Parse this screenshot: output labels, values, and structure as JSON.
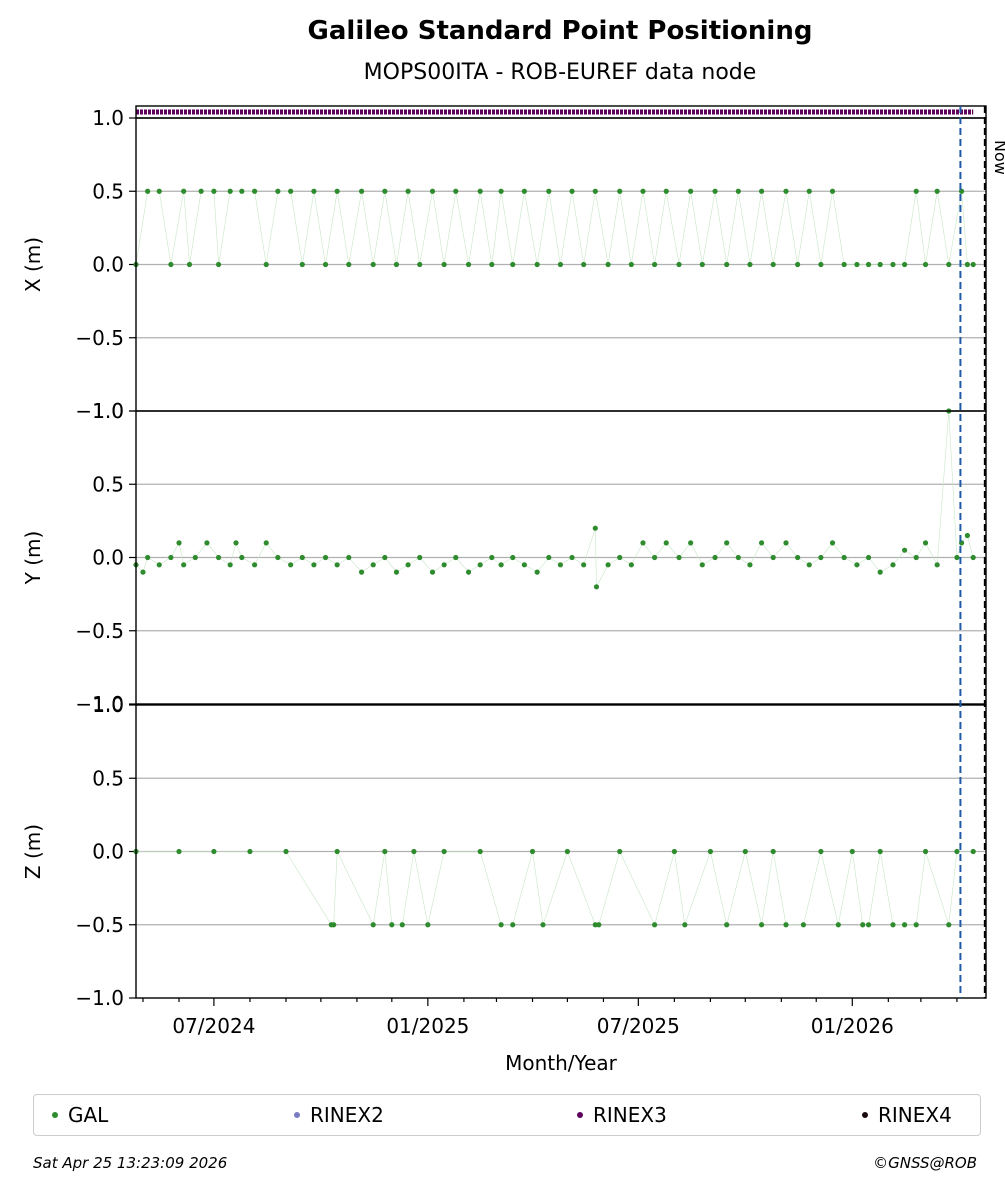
{
  "chart_data": {
    "type": "scatter",
    "title": "Galileo Standard Point Positioning",
    "subtitle": "MOPS00ITA - ROB-EUREF data node",
    "xlabel": "Month/Year",
    "x_ticks": [
      "07/2024",
      "01/2025",
      "07/2025",
      "01/2026"
    ],
    "x_range": [
      "2024-04-25",
      "2026-04-26"
    ],
    "now_label": "Now",
    "now_date": "2026-04-25",
    "blue_line_date": "2026-04-04",
    "panels": [
      {
        "ylabel": "X (m)",
        "ylim": [
          -1.0,
          1.0
        ],
        "y_ticks": [
          "−1.0",
          "−0.5",
          "0.0",
          "0.5",
          "1.0"
        ],
        "series": [
          {
            "name": "GAL",
            "color": "#2e8b2e",
            "points": [
              [
                "2024-04-25",
                0.0
              ],
              [
                "2024-05-05",
                0.5
              ],
              [
                "2024-05-15",
                0.5
              ],
              [
                "2024-05-25",
                0.0
              ],
              [
                "2024-06-05",
                0.5
              ],
              [
                "2024-06-10",
                0.0
              ],
              [
                "2024-06-20",
                0.5
              ],
              [
                "2024-07-01",
                0.5
              ],
              [
                "2024-07-05",
                0.0
              ],
              [
                "2024-07-15",
                0.5
              ],
              [
                "2024-07-25",
                0.5
              ],
              [
                "2024-08-05",
                0.5
              ],
              [
                "2024-08-15",
                0.0
              ],
              [
                "2024-08-25",
                0.5
              ],
              [
                "2024-09-05",
                0.5
              ],
              [
                "2024-09-15",
                0.0
              ],
              [
                "2024-09-25",
                0.5
              ],
              [
                "2024-10-05",
                0.0
              ],
              [
                "2024-10-15",
                0.5
              ],
              [
                "2024-10-25",
                0.0
              ],
              [
                "2024-11-05",
                0.5
              ],
              [
                "2024-11-15",
                0.0
              ],
              [
                "2024-11-25",
                0.5
              ],
              [
                "2024-12-05",
                0.0
              ],
              [
                "2024-12-15",
                0.5
              ],
              [
                "2024-12-25",
                0.0
              ],
              [
                "2025-01-05",
                0.5
              ],
              [
                "2025-01-15",
                0.0
              ],
              [
                "2025-01-25",
                0.5
              ],
              [
                "2025-02-05",
                0.0
              ],
              [
                "2025-02-15",
                0.5
              ],
              [
                "2025-02-25",
                0.0
              ],
              [
                "2025-03-05",
                0.5
              ],
              [
                "2025-03-15",
                0.0
              ],
              [
                "2025-03-25",
                0.5
              ],
              [
                "2025-04-05",
                0.0
              ],
              [
                "2025-04-15",
                0.5
              ],
              [
                "2025-04-25",
                0.0
              ],
              [
                "2025-05-05",
                0.5
              ],
              [
                "2025-05-15",
                0.0
              ],
              [
                "2025-05-25",
                0.5
              ],
              [
                "2025-06-05",
                0.0
              ],
              [
                "2025-06-15",
                0.5
              ],
              [
                "2025-06-25",
                0.0
              ],
              [
                "2025-07-05",
                0.5
              ],
              [
                "2025-07-15",
                0.0
              ],
              [
                "2025-07-25",
                0.5
              ],
              [
                "2025-08-05",
                0.0
              ],
              [
                "2025-08-15",
                0.5
              ],
              [
                "2025-08-25",
                0.0
              ],
              [
                "2025-09-05",
                0.5
              ],
              [
                "2025-09-15",
                0.0
              ],
              [
                "2025-09-25",
                0.5
              ],
              [
                "2025-10-05",
                0.0
              ],
              [
                "2025-10-15",
                0.5
              ],
              [
                "2025-10-25",
                0.0
              ],
              [
                "2025-11-05",
                0.5
              ],
              [
                "2025-11-15",
                0.0
              ],
              [
                "2025-11-25",
                0.5
              ],
              [
                "2025-12-05",
                0.0
              ],
              [
                "2025-12-15",
                0.5
              ],
              [
                "2025-12-25",
                0.0
              ],
              [
                "2026-01-05",
                0.0
              ],
              [
                "2026-01-15",
                0.0
              ],
              [
                "2026-01-25",
                0.0
              ],
              [
                "2026-02-05",
                0.0
              ],
              [
                "2026-02-15",
                0.0
              ],
              [
                "2026-02-25",
                0.5
              ],
              [
                "2026-03-05",
                0.0
              ],
              [
                "2026-03-15",
                0.5
              ],
              [
                "2026-03-25",
                0.0
              ],
              [
                "2026-04-05",
                0.5
              ],
              [
                "2026-04-10",
                0.0
              ],
              [
                "2026-04-15",
                0.0
              ]
            ]
          },
          {
            "name": "RINEX3",
            "color": "#5e005e",
            "y_constant": 1.05,
            "from": "2024-04-25",
            "to": "2026-04-15"
          }
        ]
      },
      {
        "ylabel": "Y (m)",
        "ylim": [
          -1.0,
          1.0
        ],
        "y_ticks": [
          "−1.0",
          "−0.5",
          "0.0",
          "0.5",
          "1.0"
        ],
        "series": [
          {
            "name": "GAL",
            "color": "#2e8b2e",
            "points": [
              [
                "2024-04-25",
                -0.05
              ],
              [
                "2024-05-01",
                -0.1
              ],
              [
                "2024-05-05",
                0.0
              ],
              [
                "2024-05-15",
                -0.05
              ],
              [
                "2024-05-25",
                0.0
              ],
              [
                "2024-06-01",
                0.1
              ],
              [
                "2024-06-05",
                -0.05
              ],
              [
                "2024-06-15",
                0.0
              ],
              [
                "2024-06-25",
                0.1
              ],
              [
                "2024-07-05",
                0.0
              ],
              [
                "2024-07-15",
                -0.05
              ],
              [
                "2024-07-20",
                0.1
              ],
              [
                "2024-07-25",
                0.0
              ],
              [
                "2024-08-05",
                -0.05
              ],
              [
                "2024-08-15",
                0.1
              ],
              [
                "2024-08-25",
                0.0
              ],
              [
                "2024-09-05",
                -0.05
              ],
              [
                "2024-09-15",
                0.0
              ],
              [
                "2024-09-25",
                -0.05
              ],
              [
                "2024-10-05",
                0.0
              ],
              [
                "2024-10-15",
                -0.05
              ],
              [
                "2024-10-25",
                0.0
              ],
              [
                "2024-11-05",
                -0.1
              ],
              [
                "2024-11-15",
                -0.05
              ],
              [
                "2024-11-25",
                0.0
              ],
              [
                "2024-12-05",
                -0.1
              ],
              [
                "2024-12-15",
                -0.05
              ],
              [
                "2024-12-25",
                0.0
              ],
              [
                "2025-01-05",
                -0.1
              ],
              [
                "2025-01-15",
                -0.05
              ],
              [
                "2025-01-25",
                0.0
              ],
              [
                "2025-02-05",
                -0.1
              ],
              [
                "2025-02-15",
                -0.05
              ],
              [
                "2025-02-25",
                0.0
              ],
              [
                "2025-03-05",
                -0.05
              ],
              [
                "2025-03-15",
                0.0
              ],
              [
                "2025-03-25",
                -0.05
              ],
              [
                "2025-04-05",
                -0.1
              ],
              [
                "2025-04-15",
                0.0
              ],
              [
                "2025-04-25",
                -0.05
              ],
              [
                "2025-05-05",
                0.0
              ],
              [
                "2025-05-15",
                -0.05
              ],
              [
                "2025-05-25",
                0.2
              ],
              [
                "2025-05-26",
                -0.2
              ],
              [
                "2025-06-05",
                -0.05
              ],
              [
                "2025-06-15",
                0.0
              ],
              [
                "2025-06-25",
                -0.05
              ],
              [
                "2025-07-05",
                0.1
              ],
              [
                "2025-07-15",
                0.0
              ],
              [
                "2025-07-25",
                0.1
              ],
              [
                "2025-08-05",
                0.0
              ],
              [
                "2025-08-15",
                0.1
              ],
              [
                "2025-08-25",
                -0.05
              ],
              [
                "2025-09-05",
                0.0
              ],
              [
                "2025-09-15",
                0.1
              ],
              [
                "2025-09-25",
                0.0
              ],
              [
                "2025-10-05",
                -0.05
              ],
              [
                "2025-10-15",
                0.1
              ],
              [
                "2025-10-25",
                0.0
              ],
              [
                "2025-11-05",
                0.1
              ],
              [
                "2025-11-15",
                0.0
              ],
              [
                "2025-11-25",
                -0.05
              ],
              [
                "2025-12-05",
                0.0
              ],
              [
                "2025-12-15",
                0.1
              ],
              [
                "2025-12-25",
                0.0
              ],
              [
                "2026-01-05",
                -0.05
              ],
              [
                "2026-01-15",
                0.0
              ],
              [
                "2026-01-25",
                -0.1
              ],
              [
                "2026-02-05",
                -0.05
              ],
              [
                "2026-02-15",
                0.05
              ],
              [
                "2026-02-25",
                0.0
              ],
              [
                "2026-03-05",
                0.1
              ],
              [
                "2026-03-15",
                -0.05
              ],
              [
                "2026-03-25",
                1.0
              ],
              [
                "2026-04-01",
                0.0
              ],
              [
                "2026-04-05",
                0.1
              ],
              [
                "2026-04-10",
                0.15
              ],
              [
                "2026-04-15",
                0.0
              ]
            ]
          }
        ]
      },
      {
        "ylabel": "Z (m)",
        "ylim": [
          -1.0,
          1.0
        ],
        "y_ticks": [
          "−1.0",
          "−0.5",
          "0.0",
          "0.5",
          "1.0"
        ],
        "series": [
          {
            "name": "GAL",
            "color": "#2e8b2e",
            "points": [
              [
                "2024-04-25",
                0.0
              ],
              [
                "2024-06-01",
                0.0
              ],
              [
                "2024-07-01",
                0.0
              ],
              [
                "2024-08-01",
                0.0
              ],
              [
                "2024-09-01",
                0.0
              ],
              [
                "2024-10-10",
                -0.5
              ],
              [
                "2024-10-12",
                -0.5
              ],
              [
                "2024-10-15",
                0.0
              ],
              [
                "2024-11-15",
                -0.5
              ],
              [
                "2024-11-25",
                0.0
              ],
              [
                "2024-12-01",
                -0.5
              ],
              [
                "2024-12-10",
                -0.5
              ],
              [
                "2024-12-20",
                0.0
              ],
              [
                "2025-01-01",
                -0.5
              ],
              [
                "2025-01-15",
                0.0
              ],
              [
                "2025-02-15",
                0.0
              ],
              [
                "2025-03-05",
                -0.5
              ],
              [
                "2025-03-15",
                -0.5
              ],
              [
                "2025-04-01",
                0.0
              ],
              [
                "2025-04-10",
                -0.5
              ],
              [
                "2025-05-01",
                0.0
              ],
              [
                "2025-05-25",
                -0.5
              ],
              [
                "2025-05-28",
                -0.5
              ],
              [
                "2025-06-15",
                0.0
              ],
              [
                "2025-07-15",
                -0.5
              ],
              [
                "2025-08-01",
                0.0
              ],
              [
                "2025-08-10",
                -0.5
              ],
              [
                "2025-09-01",
                0.0
              ],
              [
                "2025-09-15",
                -0.5
              ],
              [
                "2025-10-01",
                0.0
              ],
              [
                "2025-10-15",
                -0.5
              ],
              [
                "2025-10-25",
                0.0
              ],
              [
                "2025-11-05",
                -0.5
              ],
              [
                "2025-11-20",
                -0.5
              ],
              [
                "2025-12-05",
                0.0
              ],
              [
                "2025-12-20",
                -0.5
              ],
              [
                "2026-01-01",
                0.0
              ],
              [
                "2026-01-10",
                -0.5
              ],
              [
                "2026-01-15",
                -0.5
              ],
              [
                "2026-01-25",
                0.0
              ],
              [
                "2026-02-05",
                -0.5
              ],
              [
                "2026-02-15",
                -0.5
              ],
              [
                "2026-02-25",
                -0.5
              ],
              [
                "2026-03-05",
                0.0
              ],
              [
                "2026-03-25",
                -0.5
              ],
              [
                "2026-04-01",
                0.0
              ],
              [
                "2026-04-15",
                0.0
              ]
            ]
          }
        ]
      }
    ],
    "legend": {
      "placement": "bottom",
      "entries": [
        {
          "label": "GAL",
          "color": "#2e8b2e"
        },
        {
          "label": "RINEX2",
          "color": "#7b7bc4"
        },
        {
          "label": "RINEX3",
          "color": "#5e005e"
        },
        {
          "label": "RINEX4",
          "color": "#1a0a10"
        }
      ]
    },
    "grid": true
  },
  "footer": {
    "timestamp": "Sat Apr 25 13:23:09 2026",
    "credit": "©GNSS@ROB"
  },
  "colors": {
    "blue_line": "#1f5aa8",
    "now_line": "#000000",
    "grid": "#b0b0b0"
  }
}
